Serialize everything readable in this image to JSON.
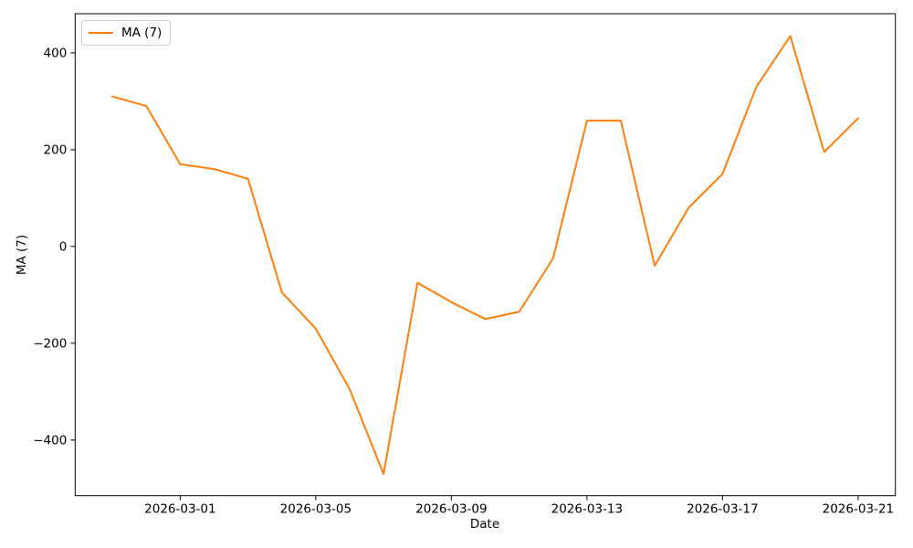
{
  "chart_data": {
    "type": "line",
    "title": "",
    "xlabel": "Date",
    "ylabel": "MA (7)",
    "legend_position": "upper left",
    "grid": false,
    "background_color": "#ffffff",
    "line_color": "#ff7f0e",
    "axis_color": "#000000",
    "legend_border_color": "#cccccc",
    "x": [
      "2026-02-27",
      "2026-02-28",
      "2026-03-01",
      "2026-03-02",
      "2026-03-03",
      "2026-03-04",
      "2026-03-05",
      "2026-03-06",
      "2026-03-07",
      "2026-03-08",
      "2026-03-09",
      "2026-03-10",
      "2026-03-11",
      "2026-03-12",
      "2026-03-13",
      "2026-03-14",
      "2026-03-15",
      "2026-03-16",
      "2026-03-17",
      "2026-03-18",
      "2026-03-19",
      "2026-03-20",
      "2026-03-21"
    ],
    "series": [
      {
        "name": "MA (7)",
        "values": [
          310,
          290,
          170,
          160,
          140,
          -95,
          -170,
          -295,
          -470,
          -75,
          -115,
          -150,
          -135,
          -25,
          260,
          260,
          -40,
          80,
          150,
          330,
          435,
          195,
          265
        ]
      }
    ],
    "xticks": [
      "2026-03-01",
      "2026-03-05",
      "2026-03-09",
      "2026-03-13",
      "2026-03-17",
      "2026-03-21"
    ],
    "yticks": [
      -400,
      -200,
      0,
      200,
      400
    ],
    "ylim": [
      -515,
      481
    ]
  }
}
